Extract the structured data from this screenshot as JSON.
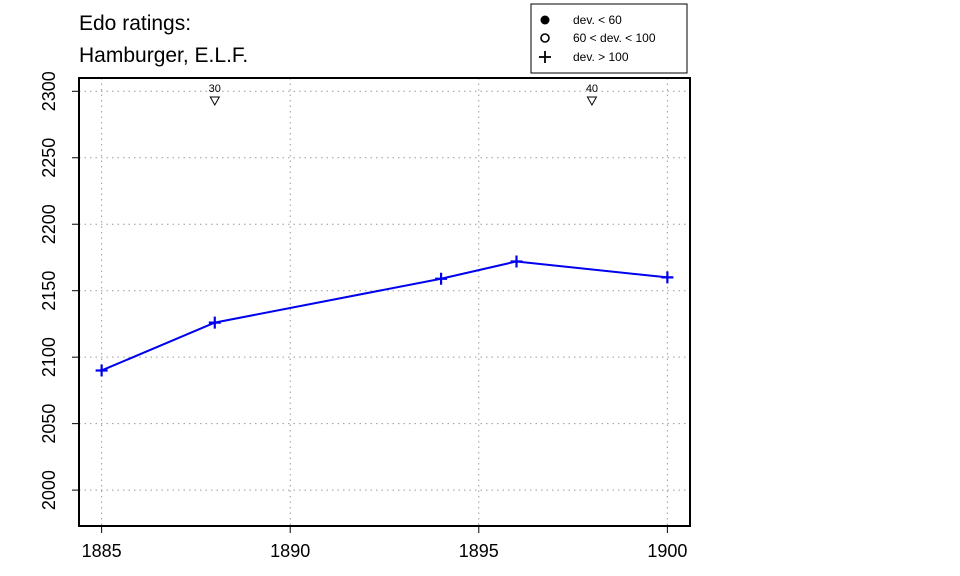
{
  "chart_data": {
    "type": "line",
    "title_lines": [
      "Edo ratings:",
      "Hamburger, E.L.F."
    ],
    "xlabel": "",
    "ylabel": "",
    "xlim": [
      1884.4,
      1900.6
    ],
    "ylim": [
      1973,
      2310
    ],
    "x_ticks": [
      1885,
      1890,
      1895,
      1900
    ],
    "y_ticks": [
      2000,
      2050,
      2100,
      2150,
      2200,
      2250,
      2300
    ],
    "grid": true,
    "series": [
      {
        "color": "#0000ee",
        "marker": "plus",
        "points": [
          {
            "x": 1885,
            "y": 2090
          },
          {
            "x": 1888,
            "y": 2126
          },
          {
            "x": 1894,
            "y": 2159
          },
          {
            "x": 1896,
            "y": 2172
          },
          {
            "x": 1900,
            "y": 2160
          }
        ]
      }
    ],
    "annotations": [
      {
        "x": 1888,
        "label": "30",
        "marker": "triangle-down"
      },
      {
        "x": 1898,
        "label": "40",
        "marker": "triangle-down"
      }
    ],
    "legend": {
      "position": "top-right",
      "items": [
        {
          "marker": "filled-circle",
          "label": "dev. < 60"
        },
        {
          "marker": "open-circle",
          "label": "60 < dev. < 100"
        },
        {
          "marker": "plus",
          "label": "dev. > 100"
        }
      ]
    }
  }
}
